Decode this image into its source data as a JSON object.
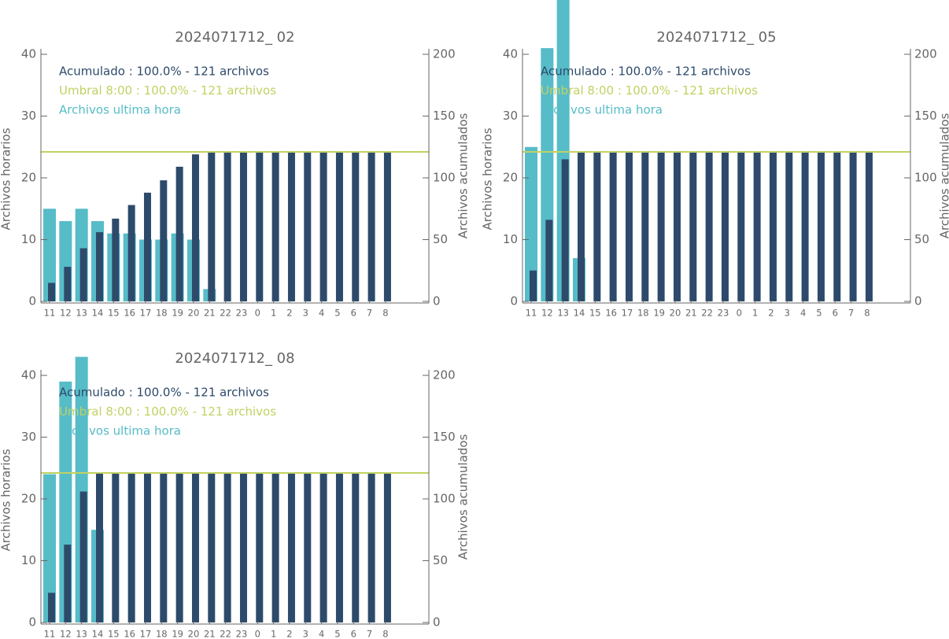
{
  "chart_data": [
    {
      "type": "bar",
      "title": "2024071712_ 02",
      "categories": [
        "11",
        "12",
        "13",
        "14",
        "15",
        "16",
        "17",
        "18",
        "19",
        "20",
        "21",
        "22",
        "23",
        "0",
        "1",
        "2",
        "3",
        "4",
        "5",
        "6",
        "7",
        "8"
      ],
      "series": [
        {
          "name": "Archivos ultima hora",
          "color": "#56bcc8",
          "values": [
            15,
            13,
            15,
            13,
            11,
            11,
            10,
            10,
            11,
            10,
            2,
            0,
            0,
            0,
            0,
            0,
            0,
            0,
            0,
            0,
            0,
            0
          ]
        },
        {
          "name": "Acumulado : 100.0% - 121 archivos",
          "color": "#2d4a6b",
          "axis": "y2",
          "values": [
            15,
            28,
            43,
            56,
            67,
            78,
            88,
            98,
            109,
            119,
            121,
            121,
            121,
            121,
            121,
            121,
            121,
            121,
            121,
            121,
            121,
            121
          ]
        }
      ],
      "reference_line": {
        "label": "Umbral 8:00 : 100.0% - 121 archivos",
        "value": 121,
        "axis": "y2",
        "color": "#c2d162"
      },
      "ylabel": "Archivos horarios",
      "y2label": "Archivos acumulados",
      "ylim": [
        0,
        40
      ],
      "yticks": [
        0,
        10,
        20,
        30,
        40
      ],
      "y2lim": [
        0,
        200
      ],
      "y2ticks": [
        0,
        50,
        100,
        150,
        200
      ]
    },
    {
      "type": "bar",
      "title": "2024071712_ 05",
      "categories": [
        "11",
        "12",
        "13",
        "14",
        "15",
        "16",
        "17",
        "18",
        "19",
        "20",
        "21",
        "22",
        "23",
        "0",
        "1",
        "2",
        "3",
        "4",
        "5",
        "6",
        "7",
        "8"
      ],
      "series": [
        {
          "name": "Archivos ultima hora",
          "color": "#56bcc8",
          "values": [
            25,
            41,
            49,
            7,
            0,
            0,
            0,
            0,
            0,
            0,
            0,
            0,
            0,
            0,
            0,
            0,
            0,
            0,
            0,
            0,
            0,
            0
          ]
        },
        {
          "name": "Acumulado : 100.0% - 121 archivos",
          "color": "#2d4a6b",
          "axis": "y2",
          "values": [
            25,
            66,
            115,
            121,
            121,
            121,
            121,
            121,
            121,
            121,
            121,
            121,
            121,
            121,
            121,
            121,
            121,
            121,
            121,
            121,
            121,
            121
          ]
        }
      ],
      "reference_line": {
        "label": "Umbral 8:00 : 100.0% - 121 archivos",
        "value": 121,
        "axis": "y2",
        "color": "#c2d162"
      },
      "ylabel": "Archivos horarios",
      "y2label": "Archivos acumulados",
      "ylim": [
        0,
        40
      ],
      "yticks": [
        0,
        10,
        20,
        30,
        40
      ],
      "y2lim": [
        0,
        200
      ],
      "y2ticks": [
        0,
        50,
        100,
        150,
        200
      ]
    },
    {
      "type": "bar",
      "title": "2024071712_ 08",
      "categories": [
        "11",
        "12",
        "13",
        "14",
        "15",
        "16",
        "17",
        "18",
        "19",
        "20",
        "21",
        "22",
        "23",
        "0",
        "1",
        "2",
        "3",
        "4",
        "5",
        "6",
        "7",
        "8"
      ],
      "series": [
        {
          "name": "Archivos ultima hora",
          "color": "#56bcc8",
          "values": [
            24,
            39,
            43,
            15,
            0,
            0,
            0,
            0,
            0,
            0,
            0,
            0,
            0,
            0,
            0,
            0,
            0,
            0,
            0,
            0,
            0,
            0
          ]
        },
        {
          "name": "Acumulado : 100.0% - 121 archivos",
          "color": "#2d4a6b",
          "axis": "y2",
          "values": [
            24,
            63,
            106,
            121,
            121,
            121,
            121,
            121,
            121,
            121,
            121,
            121,
            121,
            121,
            121,
            121,
            121,
            121,
            121,
            121,
            121,
            121
          ]
        }
      ],
      "reference_line": {
        "label": "Umbral 8:00 : 100.0% - 121 archivos",
        "value": 121,
        "axis": "y2",
        "color": "#c2d162"
      },
      "ylabel": "Archivos horarios",
      "y2label": "Archivos acumulados",
      "ylim": [
        0,
        40
      ],
      "yticks": [
        0,
        10,
        20,
        30,
        40
      ],
      "y2lim": [
        0,
        200
      ],
      "y2ticks": [
        0,
        50,
        100,
        150,
        200
      ]
    }
  ]
}
